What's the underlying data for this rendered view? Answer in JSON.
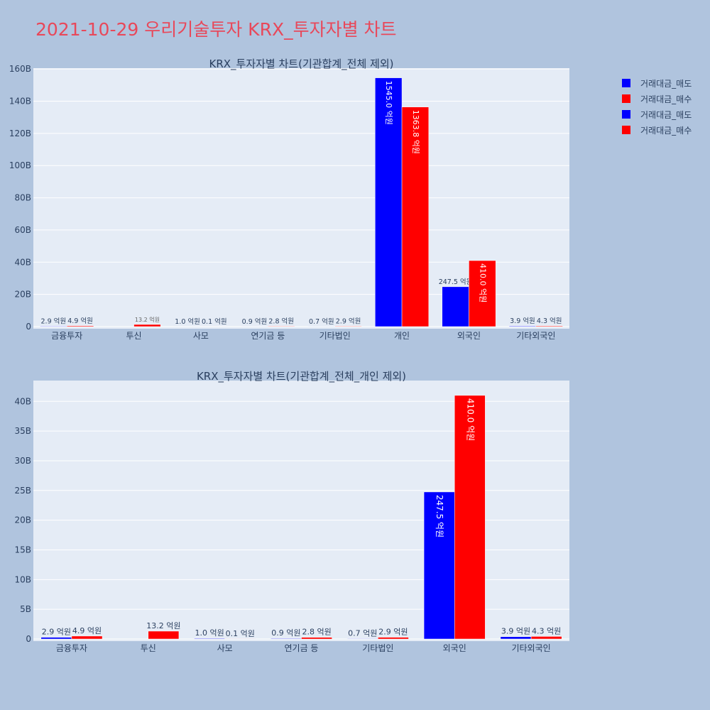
{
  "page_title": "2021-10-29 우리기술투자 KRX_투자자별 차트",
  "colors": {
    "sell": "#0000ff",
    "buy": "#ff0000",
    "plot_bg": "#e5ecf6",
    "page_bg": "#b0c4de",
    "title": "#e8485a"
  },
  "legend": [
    {
      "label": "거래대금_매도",
      "color": "#0000ff"
    },
    {
      "label": "거래대금_매수",
      "color": "#ff0000"
    },
    {
      "label": "거래대금_매도",
      "color": "#0000ff"
    },
    {
      "label": "거래대금_매수",
      "color": "#ff0000"
    }
  ],
  "chart_data": [
    {
      "type": "bar",
      "title": "KRX_투자자별 차트(기관합계_전체 제외)",
      "categories": [
        "금융투자",
        "투신",
        "사모",
        "연기금 등",
        "기타법인",
        "개인",
        "외국인",
        "기타외국인"
      ],
      "series": [
        {
          "name": "거래대금_매도",
          "values": [
            0.29,
            0,
            0.1,
            0.09,
            0.07,
            154.5,
            24.75,
            0.39
          ],
          "labels": [
            "2.9 억원",
            "",
            "1.0 억원",
            "0.9 억원",
            "0.7 억원",
            "1545.0 억원",
            "247.5 억원",
            "3.9 억원"
          ]
        },
        {
          "name": "거래대금_매수",
          "values": [
            0.49,
            1.32,
            0.01,
            0.28,
            0.29,
            136.38,
            41.0,
            0.43
          ],
          "labels": [
            "4.9 억원",
            "13.2 억원",
            "0.1 억원",
            "2.8 억원",
            "2.9 억원",
            "1363.8 억원",
            "410.0 억원",
            "4.3 억원"
          ]
        }
      ],
      "yticks": [
        0,
        20,
        40,
        60,
        80,
        100,
        120,
        140,
        160
      ],
      "ytick_labels": [
        "0",
        "20B",
        "40B",
        "60B",
        "80B",
        "100B",
        "120B",
        "140B",
        "160B"
      ],
      "ylim": [
        0,
        160.5
      ]
    },
    {
      "type": "bar",
      "title": "KRX_투자자별 차트(기관합계_전체_개인 제외)",
      "categories": [
        "금융투자",
        "투신",
        "사모",
        "연기금 등",
        "기타법인",
        "외국인",
        "기타외국인"
      ],
      "series": [
        {
          "name": "거래대금_매도",
          "values": [
            0.29,
            0,
            0.1,
            0.09,
            0.07,
            24.75,
            0.39
          ],
          "labels": [
            "2.9 억원",
            "",
            "1.0 억원",
            "0.9 억원",
            "0.7 억원",
            "247.5 억원",
            "3.9 억원"
          ]
        },
        {
          "name": "거래대금_매수",
          "values": [
            0.49,
            1.32,
            0.01,
            0.28,
            0.29,
            41.0,
            0.43
          ],
          "labels": [
            "4.9 억원",
            "13.2 억원",
            "0.1 억원",
            "2.8 억원",
            "2.9 억원",
            "410.0 억원",
            "4.3 억원"
          ]
        }
      ],
      "yticks": [
        0,
        5,
        10,
        15,
        20,
        25,
        30,
        35,
        40
      ],
      "ytick_labels": [
        "0",
        "5B",
        "10B",
        "15B",
        "20B",
        "25B",
        "30B",
        "35B",
        "40B"
      ],
      "ylim": [
        0,
        43.5
      ]
    }
  ]
}
